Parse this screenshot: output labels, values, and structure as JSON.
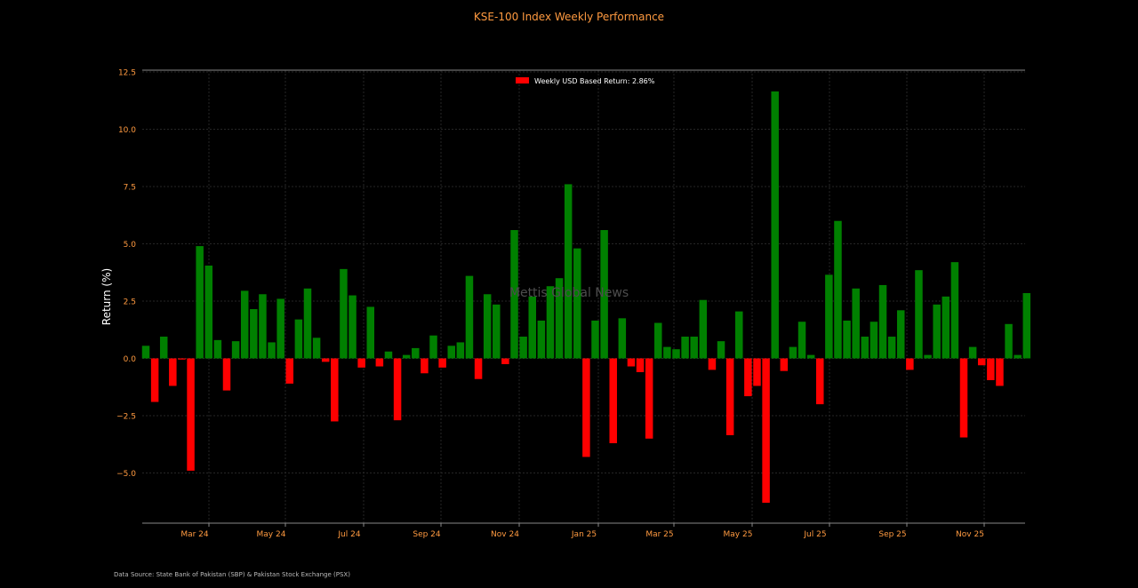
{
  "chart_data": {
    "type": "bar",
    "title": "KSE-100 Index Weekly Performance",
    "xlabel": "",
    "ylabel": "Return (%)",
    "ylim": [
      -7.2,
      12.5
    ],
    "yticks": [
      12.5,
      10.0,
      7.5,
      5.0,
      2.5,
      0.0,
      -2.5,
      -5.0
    ],
    "ytick_labels": [
      "12.5",
      "10.0",
      "7.5",
      "5.0",
      "2.5",
      "0.0",
      "−2.5",
      "−5.0"
    ],
    "xtick_labels": [
      "Mar 24",
      "May 24",
      "Jul 24",
      "Sep 24",
      "Nov 24",
      "Jan 25",
      "Mar 25",
      "May 25",
      "Jul 25",
      "Sep 25",
      "Nov 25"
    ],
    "grid": true,
    "legend": {
      "label": "Weekly USD Based Return: 2.86%",
      "position": "top-center"
    },
    "colors": {
      "positive": "#008000",
      "negative": "#ff0000",
      "background": "#000000",
      "text": "#ff9a40",
      "grid": "#262626"
    },
    "watermark": "Mettis Global News",
    "source": "Data Source: State Bank of Pakistan (SBP) & Pakistan Stock Exchange (PSX)",
    "values": [
      0.55,
      -1.9,
      0.95,
      -1.2,
      -0.05,
      -4.9,
      4.9,
      4.05,
      0.8,
      -1.4,
      0.75,
      2.95,
      2.15,
      2.8,
      0.7,
      2.6,
      -1.1,
      1.7,
      3.05,
      0.9,
      -0.15,
      -2.75,
      3.9,
      2.75,
      -0.4,
      2.25,
      -0.35,
      0.3,
      -2.7,
      0.15,
      0.45,
      -0.65,
      1.0,
      -0.4,
      0.55,
      0.7,
      3.6,
      -0.9,
      2.8,
      2.35,
      -0.25,
      5.6,
      0.95,
      2.7,
      1.65,
      3.15,
      3.5,
      7.6,
      4.8,
      -4.3,
      1.65,
      5.6,
      -3.7,
      1.75,
      -0.35,
      -0.6,
      -3.5,
      1.55,
      0.5,
      0.4,
      0.95,
      0.95,
      2.55,
      -0.5,
      0.75,
      -3.35,
      2.05,
      -1.65,
      -1.2,
      -6.3,
      11.65,
      -0.55,
      0.5,
      1.6,
      0.15,
      -2.0,
      3.65,
      6.0,
      1.65,
      3.05,
      0.95,
      1.6,
      3.2,
      0.95,
      2.1,
      -0.5,
      3.85,
      0.15,
      2.35,
      2.7,
      4.2,
      -3.45,
      0.5,
      -0.3,
      -0.95,
      -1.2,
      1.5,
      0.15,
      2.85
    ]
  }
}
